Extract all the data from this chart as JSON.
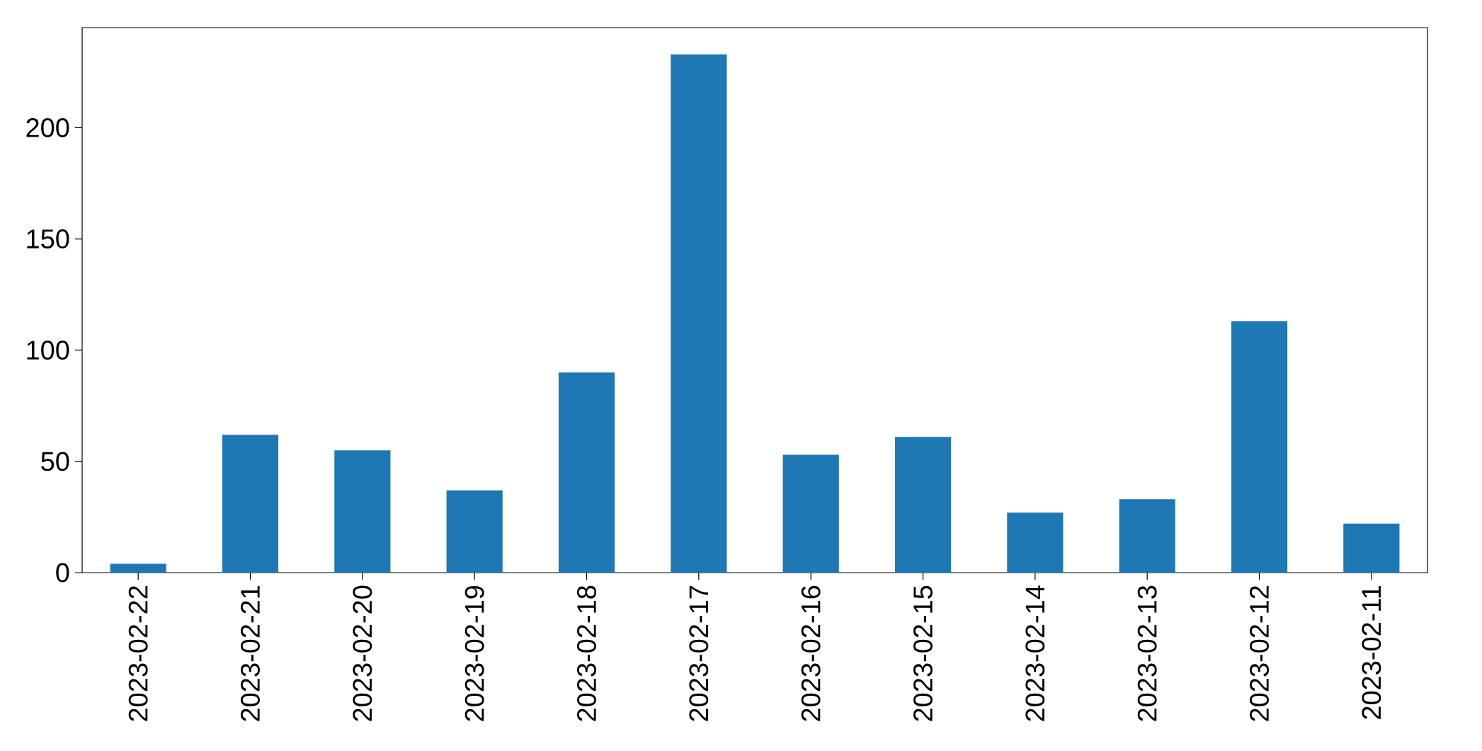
{
  "chart_data": {
    "type": "bar",
    "categories": [
      "2023-02-22",
      "2023-02-21",
      "2023-02-20",
      "2023-02-19",
      "2023-02-18",
      "2023-02-17",
      "2023-02-16",
      "2023-02-15",
      "2023-02-14",
      "2023-02-13",
      "2023-02-12",
      "2023-02-11"
    ],
    "values": [
      4,
      62,
      55,
      37,
      90,
      233,
      53,
      61,
      27,
      33,
      113,
      22
    ],
    "color": "#1f77b4",
    "ylim": [
      0,
      245
    ],
    "yticks": [
      0,
      50,
      100,
      150,
      200
    ],
    "grid": false
  }
}
